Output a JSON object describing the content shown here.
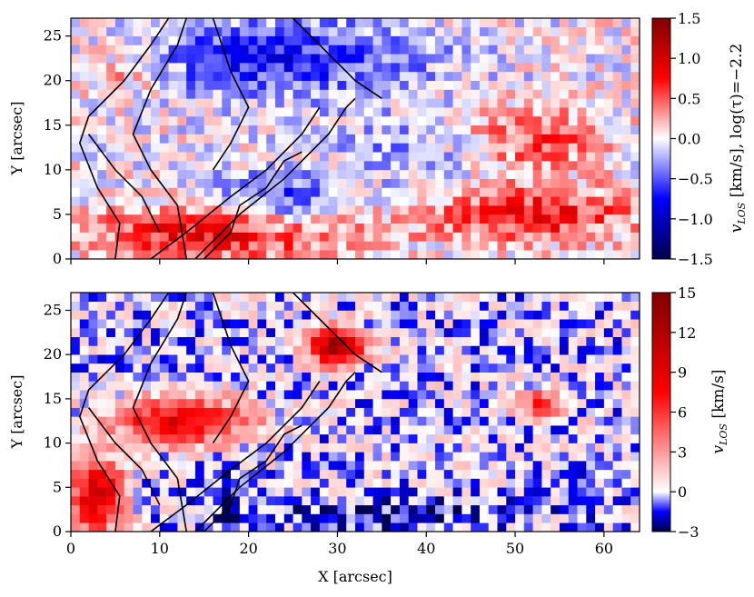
{
  "chart_data": [
    {
      "type": "heatmap",
      "panel": "top",
      "title": "",
      "xlabel": "",
      "ylabel": "Y [arcsec]",
      "xlim": [
        0,
        64
      ],
      "ylim": [
        0,
        27
      ],
      "xticks": [
        0,
        10,
        20,
        30,
        40,
        50,
        60
      ],
      "xtick_labels_shown": false,
      "yticks": [
        0,
        5,
        10,
        15,
        20,
        25
      ],
      "colormap": "seismic (blue-white-red)",
      "colorbar": {
        "label": "v_LOS [km/s], log(τ)=−2.2",
        "label_main": "v",
        "label_sub": "LOS",
        "label_rest": " [km/s], log(τ)=−2.2",
        "range": [
          -1.5,
          1.5
        ],
        "ticks": [
          -1.5,
          -1.0,
          -0.5,
          0.0,
          0.5,
          1.0,
          1.5
        ],
        "tick_labels": [
          "−1.5",
          "−1.0",
          "−0.5",
          "0.0",
          "0.5",
          "1.0",
          "1.5"
        ]
      },
      "features": [
        {
          "x": [
            3,
            30
          ],
          "y": [
            0,
            6
          ],
          "v": 0.9
        },
        {
          "x": [
            40,
            64
          ],
          "y": [
            2,
            8
          ],
          "v": 0.75
        },
        {
          "x": [
            45,
            60
          ],
          "y": [
            10,
            17
          ],
          "v": 0.55
        },
        {
          "x": [
            0,
            12
          ],
          "y": [
            18,
            24
          ],
          "v": 0.45
        },
        {
          "x": [
            5,
            40
          ],
          "y": [
            18,
            27
          ],
          "v": -0.7
        },
        {
          "x": [
            30,
            45
          ],
          "y": [
            8,
            16
          ],
          "v": -0.3
        },
        {
          "x": [
            15,
            30
          ],
          "y": [
            3,
            10
          ],
          "v": -0.6
        }
      ]
    },
    {
      "type": "heatmap",
      "panel": "bottom",
      "title": "",
      "xlabel": "X [arcsec]",
      "ylabel": "Y [arcsec]",
      "xlim": [
        0,
        64
      ],
      "ylim": [
        0,
        27
      ],
      "xticks": [
        0,
        10,
        20,
        30,
        40,
        50,
        60
      ],
      "yticks": [
        0,
        5,
        10,
        15,
        20,
        25
      ],
      "colormap": "seismic (blue-white-red)",
      "colorbar": {
        "label": "v_LOS [km/s]",
        "label_main": "v",
        "label_sub": "LOS",
        "label_rest": " [km/s]",
        "range": [
          -3,
          15
        ],
        "ticks": [
          -3,
          0,
          3,
          6,
          9,
          12,
          15
        ],
        "tick_labels": [
          "−3",
          "0",
          "3",
          "6",
          "9",
          "12",
          "15"
        ]
      },
      "features": [
        {
          "x": [
            27,
            33
          ],
          "y": [
            19,
            23
          ],
          "v": 13
        },
        {
          "x": [
            5,
            20
          ],
          "y": [
            10,
            15
          ],
          "v": 9
        },
        {
          "x": [
            0,
            6
          ],
          "y": [
            0,
            8
          ],
          "v": 10
        },
        {
          "x": [
            17,
            19
          ],
          "y": [
            0,
            7
          ],
          "v": -3
        },
        {
          "x": [
            20,
            52
          ],
          "y": [
            0,
            4
          ],
          "v": -2
        },
        {
          "x": [
            50,
            56
          ],
          "y": [
            13,
            16
          ],
          "v": 6
        }
      ]
    }
  ],
  "contours": [
    [
      [
        5,
        0
      ],
      [
        5.5,
        4
      ],
      [
        3,
        8
      ],
      [
        1,
        13
      ],
      [
        2,
        16
      ],
      [
        6,
        20
      ],
      [
        9,
        24
      ],
      [
        11,
        27
      ]
    ],
    [
      [
        13,
        0
      ],
      [
        12,
        6
      ],
      [
        9,
        10
      ],
      [
        7,
        14
      ],
      [
        9,
        19
      ],
      [
        12,
        24
      ],
      [
        13,
        27
      ]
    ],
    [
      [
        10,
        3
      ],
      [
        8,
        7
      ],
      [
        5,
        10
      ],
      [
        2,
        14
      ]
    ],
    [
      [
        14,
        0
      ],
      [
        19,
        5
      ],
      [
        24,
        9
      ],
      [
        29,
        14
      ],
      [
        31,
        17
      ],
      [
        32,
        18
      ]
    ],
    [
      [
        16,
        27
      ],
      [
        18,
        21
      ],
      [
        20,
        17
      ],
      [
        18,
        13
      ],
      [
        16,
        10
      ]
    ],
    [
      [
        9,
        0
      ],
      [
        13,
        3
      ],
      [
        18,
        7
      ],
      [
        22,
        10
      ],
      [
        26,
        14
      ],
      [
        28,
        17
      ]
    ],
    [
      [
        25,
        27
      ],
      [
        29,
        23
      ],
      [
        32,
        20
      ],
      [
        35,
        18
      ]
    ],
    [
      [
        15,
        0
      ],
      [
        18,
        3
      ],
      [
        19,
        6
      ],
      [
        22,
        8
      ],
      [
        24,
        11
      ],
      [
        26,
        12
      ]
    ]
  ]
}
